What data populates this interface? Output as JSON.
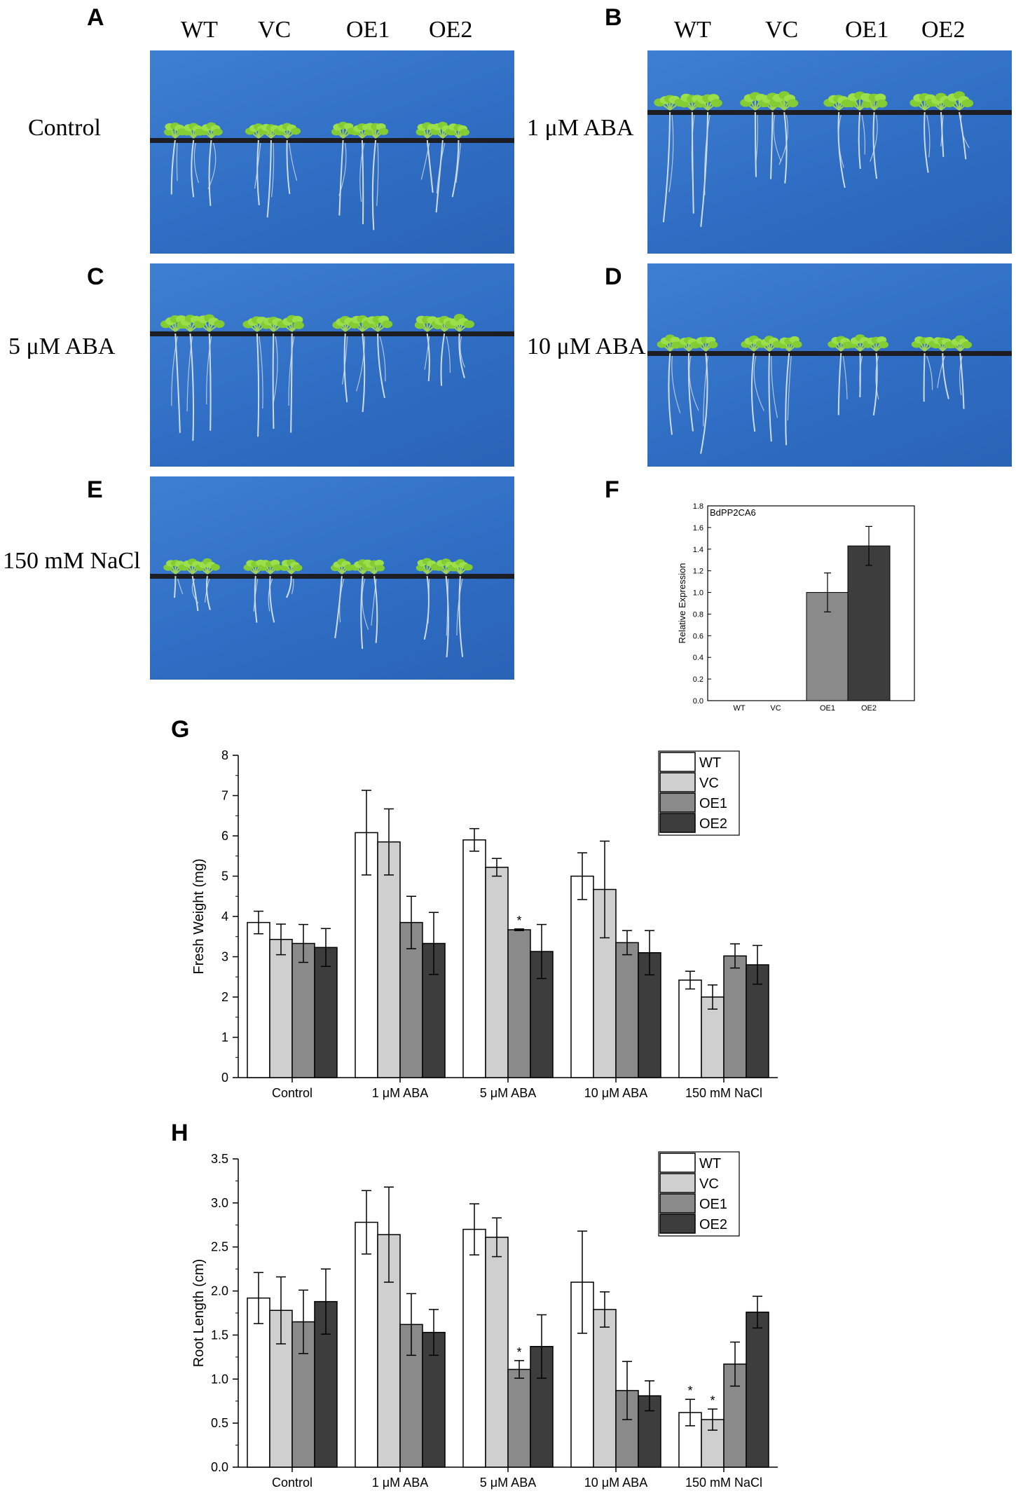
{
  "panel_letters": {
    "A": "A",
    "B": "B",
    "C": "C",
    "D": "D",
    "E": "E",
    "F": "F",
    "G": "G",
    "H": "H"
  },
  "genotypes": [
    "WT",
    "VC",
    "OE1",
    "OE2"
  ],
  "row_labels": {
    "control": "Control",
    "aba1": "1 μM ABA",
    "aba5": "5 μM ABA",
    "aba10": "10 μM ABA",
    "nacl": "150 mM NaCl"
  },
  "colors": {
    "WT": "#ffffff",
    "VC": "#cfcfcf",
    "OE1": "#8a8a8a",
    "OE2": "#3d3d3d",
    "photo_blue": "#2f6ec4",
    "seedling": "#8fdc3c"
  },
  "chart_data": [
    {
      "id": "F",
      "type": "bar",
      "title": "BdPP2CA6",
      "xlabel": "",
      "ylabel": "Relative Expression",
      "categories": [
        "WT",
        "VC",
        "OE1",
        "OE2"
      ],
      "values": [
        0,
        0,
        1.0,
        1.43
      ],
      "errors": [
        0,
        0,
        0.18,
        0.18
      ],
      "ylim": [
        0,
        1.8
      ],
      "yticks": [
        "0.0",
        "0.2",
        "0.4",
        "0.6",
        "0.8",
        "1.0",
        "1.2",
        "1.4",
        "1.6",
        "1.8"
      ]
    },
    {
      "id": "G",
      "type": "bar",
      "ylabel": "Fresh Weight (mg)",
      "categories": [
        "Control",
        "1 μM ABA",
        "5 μM ABA",
        "10 μM ABA",
        "150 mM NaCl"
      ],
      "series": [
        {
          "name": "WT",
          "values": [
            3.85,
            6.08,
            5.9,
            5.0,
            2.42
          ],
          "errors": [
            0.28,
            1.05,
            0.28,
            0.58,
            0.22
          ]
        },
        {
          "name": "VC",
          "values": [
            3.43,
            5.85,
            5.22,
            4.67,
            2.0
          ],
          "errors": [
            0.38,
            0.82,
            0.22,
            1.2,
            0.3
          ]
        },
        {
          "name": "OE1",
          "values": [
            3.33,
            3.85,
            3.67,
            3.35,
            3.02
          ],
          "errors": [
            0.47,
            0.65,
            0.02,
            0.3,
            0.3
          ]
        },
        {
          "name": "OE2",
          "values": [
            3.23,
            3.33,
            3.13,
            3.1,
            2.8
          ],
          "errors": [
            0.47,
            0.77,
            0.67,
            0.55,
            0.48
          ]
        }
      ],
      "significance": [
        {
          "category": 2,
          "series": 2,
          "mark": "*"
        }
      ],
      "ylim": [
        0,
        8
      ],
      "yticks": [
        "0",
        "1",
        "2",
        "3",
        "4",
        "5",
        "6",
        "7",
        "8"
      ],
      "legend": "top-right"
    },
    {
      "id": "H",
      "type": "bar",
      "ylabel": "Root Length (cm)",
      "categories": [
        "Control",
        "1 μM ABA",
        "5 μM ABA",
        "10 μM ABA",
        "150 mM NaCl"
      ],
      "series": [
        {
          "name": "WT",
          "values": [
            1.92,
            2.78,
            2.7,
            2.1,
            0.62
          ],
          "errors": [
            0.29,
            0.36,
            0.29,
            0.58,
            0.15
          ]
        },
        {
          "name": "VC",
          "values": [
            1.78,
            2.64,
            2.61,
            1.79,
            0.54
          ],
          "errors": [
            0.38,
            0.54,
            0.22,
            0.2,
            0.12
          ]
        },
        {
          "name": "OE1",
          "values": [
            1.65,
            1.62,
            1.11,
            0.87,
            1.17
          ],
          "errors": [
            0.36,
            0.35,
            0.1,
            0.33,
            0.25
          ]
        },
        {
          "name": "OE2",
          "values": [
            1.88,
            1.53,
            1.37,
            0.81,
            1.76
          ],
          "errors": [
            0.37,
            0.26,
            0.36,
            0.17,
            0.18
          ]
        }
      ],
      "significance": [
        {
          "category": 2,
          "series": 2,
          "mark": "*"
        },
        {
          "category": 4,
          "series": 0,
          "mark": "*"
        },
        {
          "category": 4,
          "series": 1,
          "mark": "*"
        }
      ],
      "ylim": [
        0,
        3.5
      ],
      "yticks": [
        "0.0",
        "0.5",
        "1.0",
        "1.5",
        "2.0",
        "2.5",
        "3.0",
        "3.5"
      ],
      "legend": "top-right"
    }
  ]
}
